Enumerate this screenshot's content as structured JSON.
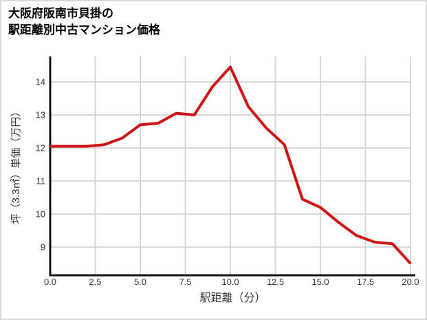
{
  "header": {
    "title_line1": "大阪府阪南市貝掛の",
    "title_line2": "駅距離別中古マンション価格"
  },
  "chart_data": {
    "type": "line",
    "title": "大阪府阪南市貝掛の駅距離別中古マンション価格",
    "xlabel": "駅距離（分）",
    "ylabel": "坪（3.3㎡）単価（万円）",
    "x": [
      0,
      1,
      2,
      3,
      4,
      5,
      6,
      7,
      8,
      9,
      10,
      11,
      12,
      13,
      14,
      15,
      16,
      17,
      18,
      19,
      20
    ],
    "values": [
      12.05,
      12.05,
      12.05,
      12.1,
      12.3,
      12.7,
      12.75,
      13.05,
      13.0,
      13.85,
      14.45,
      13.25,
      12.6,
      12.1,
      10.45,
      10.2,
      9.75,
      9.35,
      9.15,
      9.1,
      8.5
    ],
    "xlim": [
      0,
      20
    ],
    "ylim": [
      8.2,
      14.8
    ],
    "xticks": {
      "values": [
        0,
        2.5,
        5,
        7.5,
        10,
        12.5,
        15,
        17.5,
        20
      ],
      "labels": [
        "0.0",
        "2.5",
        "5.0",
        "7.5",
        "10.0",
        "12.5",
        "15.0",
        "17.5",
        "20.0"
      ]
    },
    "yticks": {
      "values": [
        9,
        10,
        11,
        12,
        13,
        14
      ],
      "labels": [
        "9",
        "10",
        "11",
        "12",
        "13",
        "14"
      ]
    },
    "grid": true,
    "legend": false,
    "line_color": "#cc1414",
    "axis_color": "#111111",
    "grid_color": "#d3d3d3",
    "tick_color": "#333333",
    "title_color": "#000000"
  }
}
